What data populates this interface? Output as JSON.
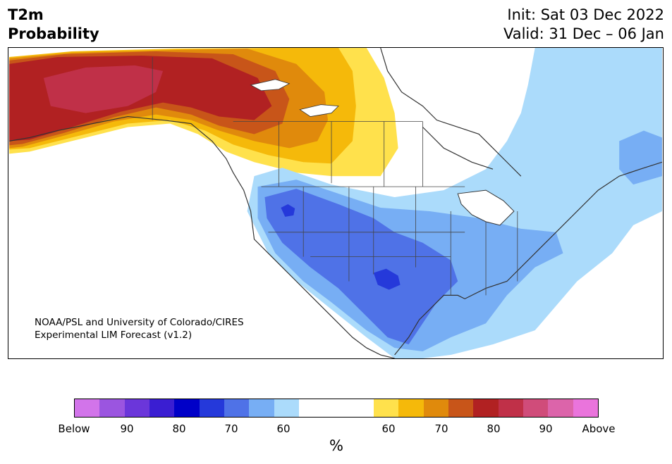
{
  "header": {
    "title_line1": "T2m",
    "title_line2": "Probability",
    "init": "Init: Sat 03 Dec 2022",
    "valid": "Valid: 31 Dec – 06 Jan"
  },
  "credit": {
    "line1": "NOAA/PSL and University of Colorado/CIRES",
    "line2": "Experimental LIM Forecast (v1.2)"
  },
  "colorbar": {
    "unit": "%",
    "colors": [
      "#d274ea",
      "#9b55e0",
      "#6b36da",
      "#3a1ed2",
      "#0000c8",
      "#2539da",
      "#4f72e7",
      "#77aef4",
      "#abdbfb",
      "#ffffff",
      "#ffe14c",
      "#f5b90a",
      "#e08a0c",
      "#c85519",
      "#b12122",
      "#c03048",
      "#d04c7a",
      "#dc64aa",
      "#ea74dc"
    ],
    "tick_labels": [
      "Below",
      "90",
      "80",
      "70",
      "60",
      "60",
      "70",
      "80",
      "90",
      "Above"
    ]
  },
  "map": {
    "region": "North America",
    "colors": {
      "warm_yellow": "#ffe14c",
      "warm_gold": "#f5b90a",
      "warm_orange": "#e08a0c",
      "warm_darkorange": "#c85519",
      "warm_red": "#b12122",
      "warm_crimson": "#c03048",
      "cold_light": "#abdbfb",
      "cold_mid": "#77aef4",
      "cold_blue": "#4f72e7",
      "cold_deep": "#2539da",
      "outline": "#333333"
    }
  }
}
